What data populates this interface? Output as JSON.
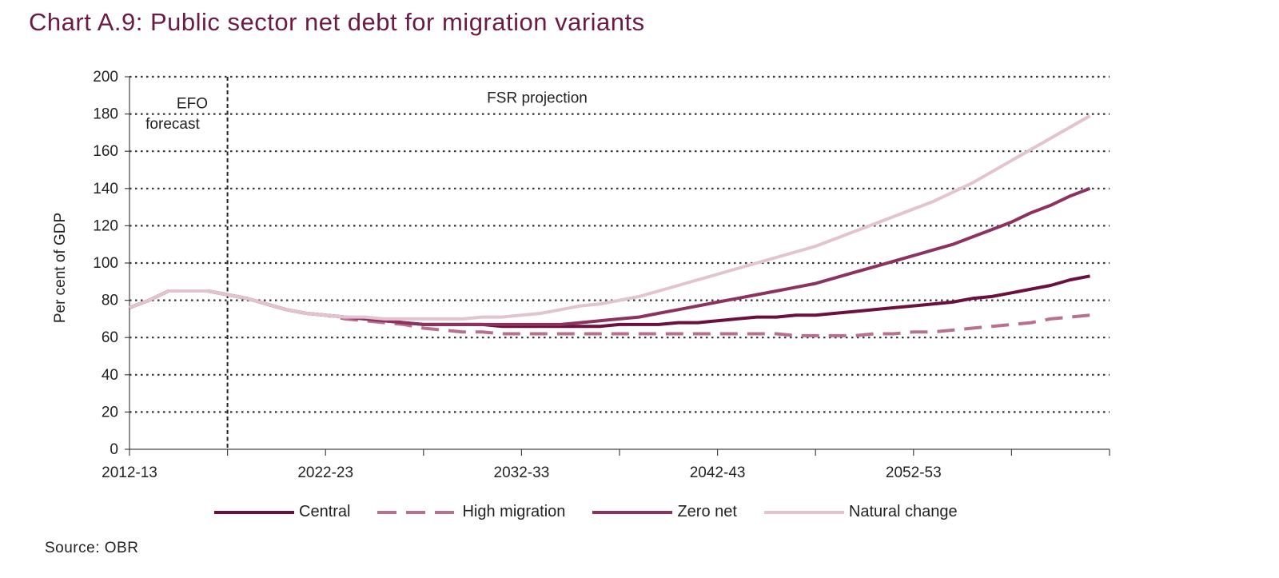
{
  "title": "Chart A.9: Public sector net debt for migration variants",
  "source": "Source: OBR",
  "chart_data": {
    "type": "line",
    "title": "Chart A.9: Public sector net debt for migration variants",
    "ylabel": "Per cent of GDP",
    "xlabel": "",
    "ylim": [
      0,
      200
    ],
    "yticks": [
      0,
      20,
      40,
      60,
      80,
      100,
      120,
      140,
      160,
      180,
      200
    ],
    "x_start": 2012,
    "x_end": 2062,
    "x_tick_labels": [
      {
        "year": 2012,
        "label": "2012-13"
      },
      {
        "year": 2022,
        "label": "2022-23"
      },
      {
        "year": 2032,
        "label": "2032-33"
      },
      {
        "year": 2042,
        "label": "2042-43"
      },
      {
        "year": 2052,
        "label": "2052-53"
      }
    ],
    "x_minor_ticks": [
      2017,
      2027,
      2037,
      2047,
      2057,
      2062
    ],
    "grid": "horizontal-dotted",
    "legend_position": "bottom",
    "divider_year": 2017,
    "annotations": [
      {
        "text": "EFO",
        "year": 2015.2,
        "y": 183
      },
      {
        "text": "forecast",
        "year": 2014.2,
        "y": 172
      },
      {
        "text": "FSR projection",
        "year": 2032.8,
        "y": 186
      }
    ],
    "x": [
      2012,
      2013,
      2014,
      2015,
      2016,
      2017,
      2018,
      2019,
      2020,
      2021,
      2022,
      2023,
      2024,
      2025,
      2026,
      2027,
      2028,
      2029,
      2030,
      2031,
      2032,
      2033,
      2034,
      2035,
      2036,
      2037,
      2038,
      2039,
      2040,
      2041,
      2042,
      2043,
      2044,
      2045,
      2046,
      2047,
      2048,
      2049,
      2050,
      2051,
      2052,
      2053,
      2054,
      2055,
      2056,
      2057,
      2058,
      2059,
      2060,
      2061
    ],
    "series": [
      {
        "name": "Central",
        "color": "#6b0f3f",
        "dash": "solid",
        "values": [
          76,
          80,
          85,
          85,
          85,
          83,
          81,
          78,
          75,
          73,
          72,
          71,
          70,
          69,
          68,
          67,
          67,
          67,
          67,
          66,
          66,
          66,
          66,
          66,
          66,
          67,
          67,
          67,
          68,
          68,
          69,
          70,
          71,
          71,
          72,
          72,
          73,
          74,
          75,
          76,
          77,
          78,
          79,
          81,
          82,
          84,
          86,
          88,
          91,
          93
        ]
      },
      {
        "name": "High migration",
        "color": "#b9708f",
        "dash": "dashed",
        "values": [
          76,
          80,
          85,
          85,
          85,
          83,
          81,
          78,
          75,
          73,
          72,
          70,
          69,
          68,
          67,
          65,
          64,
          63,
          63,
          62,
          62,
          62,
          62,
          62,
          62,
          62,
          62,
          62,
          62,
          62,
          62,
          62,
          62,
          62,
          61,
          61,
          61,
          61,
          62,
          62,
          63,
          63,
          64,
          65,
          66,
          67,
          68,
          70,
          71,
          72
        ]
      },
      {
        "name": "Zero net",
        "color": "#8c325f",
        "dash": "solid",
        "values": [
          76,
          80,
          85,
          85,
          85,
          83,
          81,
          78,
          75,
          73,
          72,
          71,
          70,
          69,
          68,
          67,
          67,
          67,
          67,
          67,
          67,
          67,
          67,
          68,
          69,
          70,
          71,
          73,
          75,
          77,
          79,
          81,
          83,
          85,
          87,
          89,
          92,
          95,
          98,
          101,
          104,
          107,
          110,
          114,
          118,
          122,
          127,
          131,
          136,
          140
        ]
      },
      {
        "name": "Natural change",
        "color": "#e3c3d0",
        "dash": "solid",
        "values": [
          76,
          80,
          85,
          85,
          85,
          83,
          81,
          78,
          75,
          73,
          72,
          71,
          71,
          70,
          70,
          70,
          70,
          70,
          71,
          71,
          72,
          73,
          75,
          77,
          78,
          80,
          82,
          85,
          88,
          91,
          94,
          97,
          100,
          103,
          106,
          109,
          113,
          117,
          121,
          125,
          129,
          133,
          138,
          143,
          149,
          155,
          161,
          167,
          173,
          179
        ]
      }
    ]
  }
}
